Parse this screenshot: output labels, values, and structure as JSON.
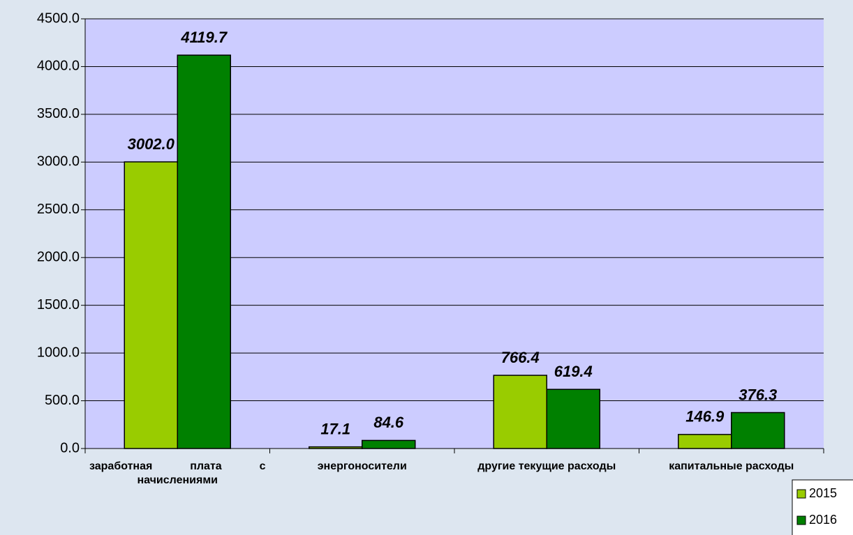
{
  "chart_data": {
    "type": "bar",
    "categories": [
      "заработная плата с начислениями",
      "энергоносители",
      "другие текущие расходы",
      "капитальные расходы"
    ],
    "series": [
      {
        "name": "2015",
        "color": "#99cc00",
        "values": [
          3002.0,
          17.1,
          766.4,
          146.9
        ],
        "value_labels": [
          "3002.0",
          "17.1",
          "766.4",
          "146.9"
        ]
      },
      {
        "name": "2016",
        "color": "#008000",
        "values": [
          4119.7,
          84.6,
          619.4,
          376.3
        ],
        "value_labels": [
          "4119.7",
          "84.6",
          "619.4",
          "376.3"
        ]
      }
    ],
    "ylim": [
      0,
      4500
    ],
    "yticks": [
      {
        "value": 0,
        "label": "0.0"
      },
      {
        "value": 500,
        "label": "500.0"
      },
      {
        "value": 1000,
        "label": "1000.0"
      },
      {
        "value": 1500,
        "label": "1500.0"
      },
      {
        "value": 2000,
        "label": "2000.0"
      },
      {
        "value": 2500,
        "label": "2500.0"
      },
      {
        "value": 3000,
        "label": "3000.0"
      },
      {
        "value": 3500,
        "label": "3500.0"
      },
      {
        "value": 4000,
        "label": "4000.0"
      },
      {
        "value": 4500,
        "label": "4500.0"
      }
    ],
    "grid": true,
    "legend": "bottom-right"
  }
}
